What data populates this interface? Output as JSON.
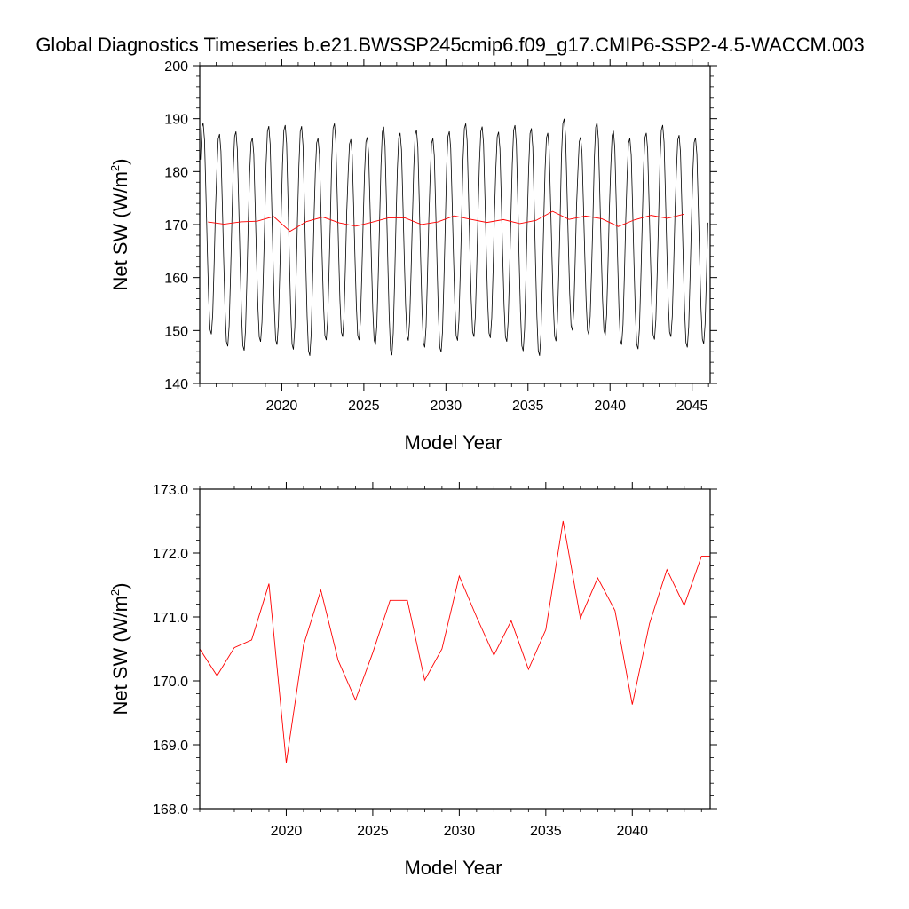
{
  "title": "Global Diagnostics Timeseries b.e21.BWSSP245cmip6.f09_g17.CMIP6-SSP2-4.5-WACCM.003",
  "colors": {
    "monthly": "#000000",
    "annual": "#ff0000",
    "axes": "#000000"
  },
  "chart_data": [
    {
      "type": "line",
      "xlabel": "Model Year",
      "ylabel_main": "Net SW (W/m",
      "ylabel_sup": "2",
      "ylabel_close": ")",
      "xlim": [
        2015,
        2046.1
      ],
      "ylim": [
        140,
        200
      ],
      "xticks": [
        2020,
        2025,
        2030,
        2035,
        2040,
        2045
      ],
      "xtick_labels": [
        "2020",
        "2025",
        "2030",
        "2035",
        "2040",
        "2045"
      ],
      "yticks": [
        140,
        150,
        160,
        170,
        180,
        190,
        200
      ],
      "ytick_labels": [
        "140",
        "150",
        "160",
        "170",
        "180",
        "190",
        "200"
      ],
      "series": [
        {
          "style": "monthly",
          "color": "#000000",
          "start_year": 2015,
          "start_month_index": 1,
          "months_per_year": 12,
          "annual_max": [
            189.5,
            187.4,
            187.9,
            186.7,
            188.9,
            189.1,
            188.9,
            186.6,
            189.4,
            186.4,
            186.8,
            188.8,
            187.6,
            188.2,
            186.6,
            187.9,
            189.4,
            188.8,
            187.8,
            189.1,
            188.5,
            187.6,
            190.3,
            186.8,
            189.6,
            188.0,
            186.6,
            187.6,
            189.1,
            187.2,
            186.7
          ],
          "annual_min": [
            149.0,
            146.7,
            145.9,
            147.6,
            147.0,
            146.1,
            144.9,
            147.9,
            148.5,
            147.9,
            147.0,
            145.0,
            147.8,
            146.5,
            145.6,
            147.8,
            148.5,
            148.3,
            147.6,
            145.8,
            144.9,
            147.7,
            149.7,
            148.9,
            148.8,
            147.0,
            146.2,
            148.0,
            148.5,
            146.5,
            147.2
          ],
          "values": []
        },
        {
          "style": "annual",
          "color": "#ff0000",
          "x": [
            2015.5,
            2016.5,
            2017.5,
            2018.5,
            2019.5,
            2020.5,
            2021.5,
            2022.5,
            2023.5,
            2024.5,
            2025.5,
            2026.5,
            2027.5,
            2028.5,
            2029.5,
            2030.5,
            2031.5,
            2032.5,
            2033.5,
            2034.5,
            2035.5,
            2036.5,
            2037.5,
            2038.5,
            2039.5,
            2040.5,
            2041.5,
            2042.5,
            2043.5,
            2044.5
          ],
          "values": [
            170.5,
            170.08,
            170.52,
            170.64,
            171.52,
            168.72,
            170.56,
            171.42,
            170.32,
            169.7,
            170.44,
            171.26,
            171.26,
            170.01,
            170.5,
            171.64,
            171.0,
            170.4,
            170.94,
            170.18,
            170.8,
            172.5,
            170.98,
            171.61,
            171.1,
            169.63,
            170.9,
            171.74,
            171.18,
            171.95
          ]
        }
      ]
    },
    {
      "type": "line",
      "xlabel": "Model Year",
      "ylabel_main": "Net SW (W/m",
      "ylabel_sup": "2",
      "ylabel_close": ")",
      "xlim": [
        2015,
        2044.5
      ],
      "ylim": [
        168,
        173
      ],
      "xticks": [
        2020,
        2025,
        2030,
        2035,
        2040
      ],
      "xtick_labels": [
        "2020",
        "2025",
        "2030",
        "2035",
        "2040"
      ],
      "yticks": [
        168,
        169,
        170,
        171,
        172,
        173
      ],
      "ytick_labels": [
        "168.0",
        "169.0",
        "170.0",
        "171.0",
        "172.0",
        "173.0"
      ],
      "series": [
        {
          "style": "annual",
          "color": "#ff0000",
          "x": [
            2015.0,
            2016.0,
            2017.0,
            2018.0,
            2019.0,
            2020.0,
            2021.0,
            2022.0,
            2023.0,
            2024.0,
            2025.0,
            2026.0,
            2027.0,
            2028.0,
            2029.0,
            2030.0,
            2031.0,
            2032.0,
            2033.0,
            2034.0,
            2035.0,
            2036.0,
            2037.0,
            2038.0,
            2039.0,
            2040.0,
            2041.0,
            2042.0,
            2043.0,
            2044.0,
            2044.5
          ],
          "values": [
            170.5,
            170.08,
            170.52,
            170.64,
            171.52,
            168.72,
            170.56,
            171.42,
            170.32,
            169.7,
            170.44,
            171.26,
            171.26,
            170.01,
            170.5,
            171.64,
            171.0,
            170.4,
            170.94,
            170.18,
            170.8,
            172.5,
            170.98,
            171.61,
            171.1,
            169.63,
            170.9,
            171.74,
            171.18,
            171.95,
            171.95
          ]
        }
      ]
    }
  ]
}
